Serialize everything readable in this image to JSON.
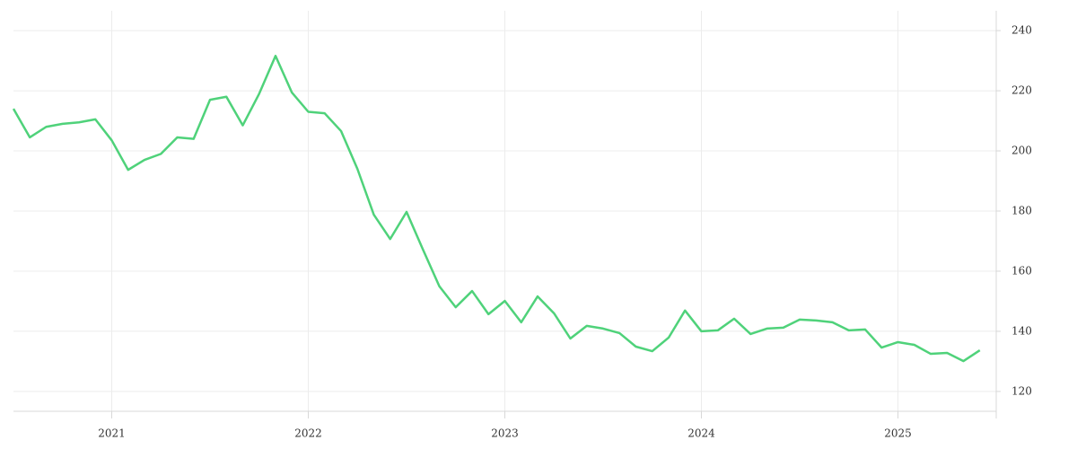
{
  "chart_data": {
    "type": "line",
    "x": [
      "2020-07",
      "2020-08",
      "2020-09",
      "2020-10",
      "2020-11",
      "2020-12",
      "2021-01",
      "2021-02",
      "2021-03",
      "2021-04",
      "2021-05",
      "2021-06",
      "2021-07",
      "2021-08",
      "2021-09",
      "2021-10",
      "2021-11",
      "2021-12",
      "2022-01",
      "2022-02",
      "2022-03",
      "2022-04",
      "2022-05",
      "2022-06",
      "2022-07",
      "2022-08",
      "2022-09",
      "2022-10",
      "2022-11",
      "2022-12",
      "2023-01",
      "2023-02",
      "2023-03",
      "2023-04",
      "2023-05",
      "2023-06",
      "2023-07",
      "2023-08",
      "2023-09",
      "2023-10",
      "2023-11",
      "2023-12",
      "2024-01",
      "2024-02",
      "2024-03",
      "2024-04",
      "2024-05",
      "2024-06",
      "2024-07",
      "2024-08",
      "2024-09",
      "2024-10",
      "2024-11",
      "2024-12",
      "2025-01",
      "2025-02",
      "2025-03",
      "2025-04",
      "2025-05",
      "2025-06"
    ],
    "series": [
      {
        "color": "#4fd27a",
        "values": [
          214,
          204.5,
          208,
          209,
          209.5,
          210.5,
          203.5,
          193.7,
          197,
          199,
          204.5,
          204,
          217,
          218,
          208.5,
          219,
          231.6,
          219.4,
          213,
          212.5,
          206.6,
          194,
          178.8,
          170.7,
          179.7,
          167.2,
          155,
          148,
          153.4,
          145.7,
          150.1,
          143,
          151.6,
          146,
          137.6,
          141.8,
          140.9,
          139.4,
          134.9,
          133.4,
          137.9,
          146.9,
          140,
          140.3,
          144.2,
          139.1,
          140.9,
          141.2,
          143.9,
          143.6,
          143,
          140.3,
          140.6,
          134.6,
          136.4,
          135.5,
          132.5,
          132.8,
          130.1,
          133.7
        ]
      }
    ],
    "xlim": [
      "2020-07",
      "2025-07"
    ],
    "xticks": [
      {
        "value": "2021-01",
        "label": "2021"
      },
      {
        "value": "2022-01",
        "label": "2022"
      },
      {
        "value": "2023-01",
        "label": "2023"
      },
      {
        "value": "2024-01",
        "label": "2024"
      },
      {
        "value": "2025-01",
        "label": "2025"
      }
    ],
    "ylim": [
      113.4,
      246.6
    ],
    "yticks": [
      120,
      140,
      160,
      180,
      200,
      220,
      240
    ],
    "grid": true
  }
}
